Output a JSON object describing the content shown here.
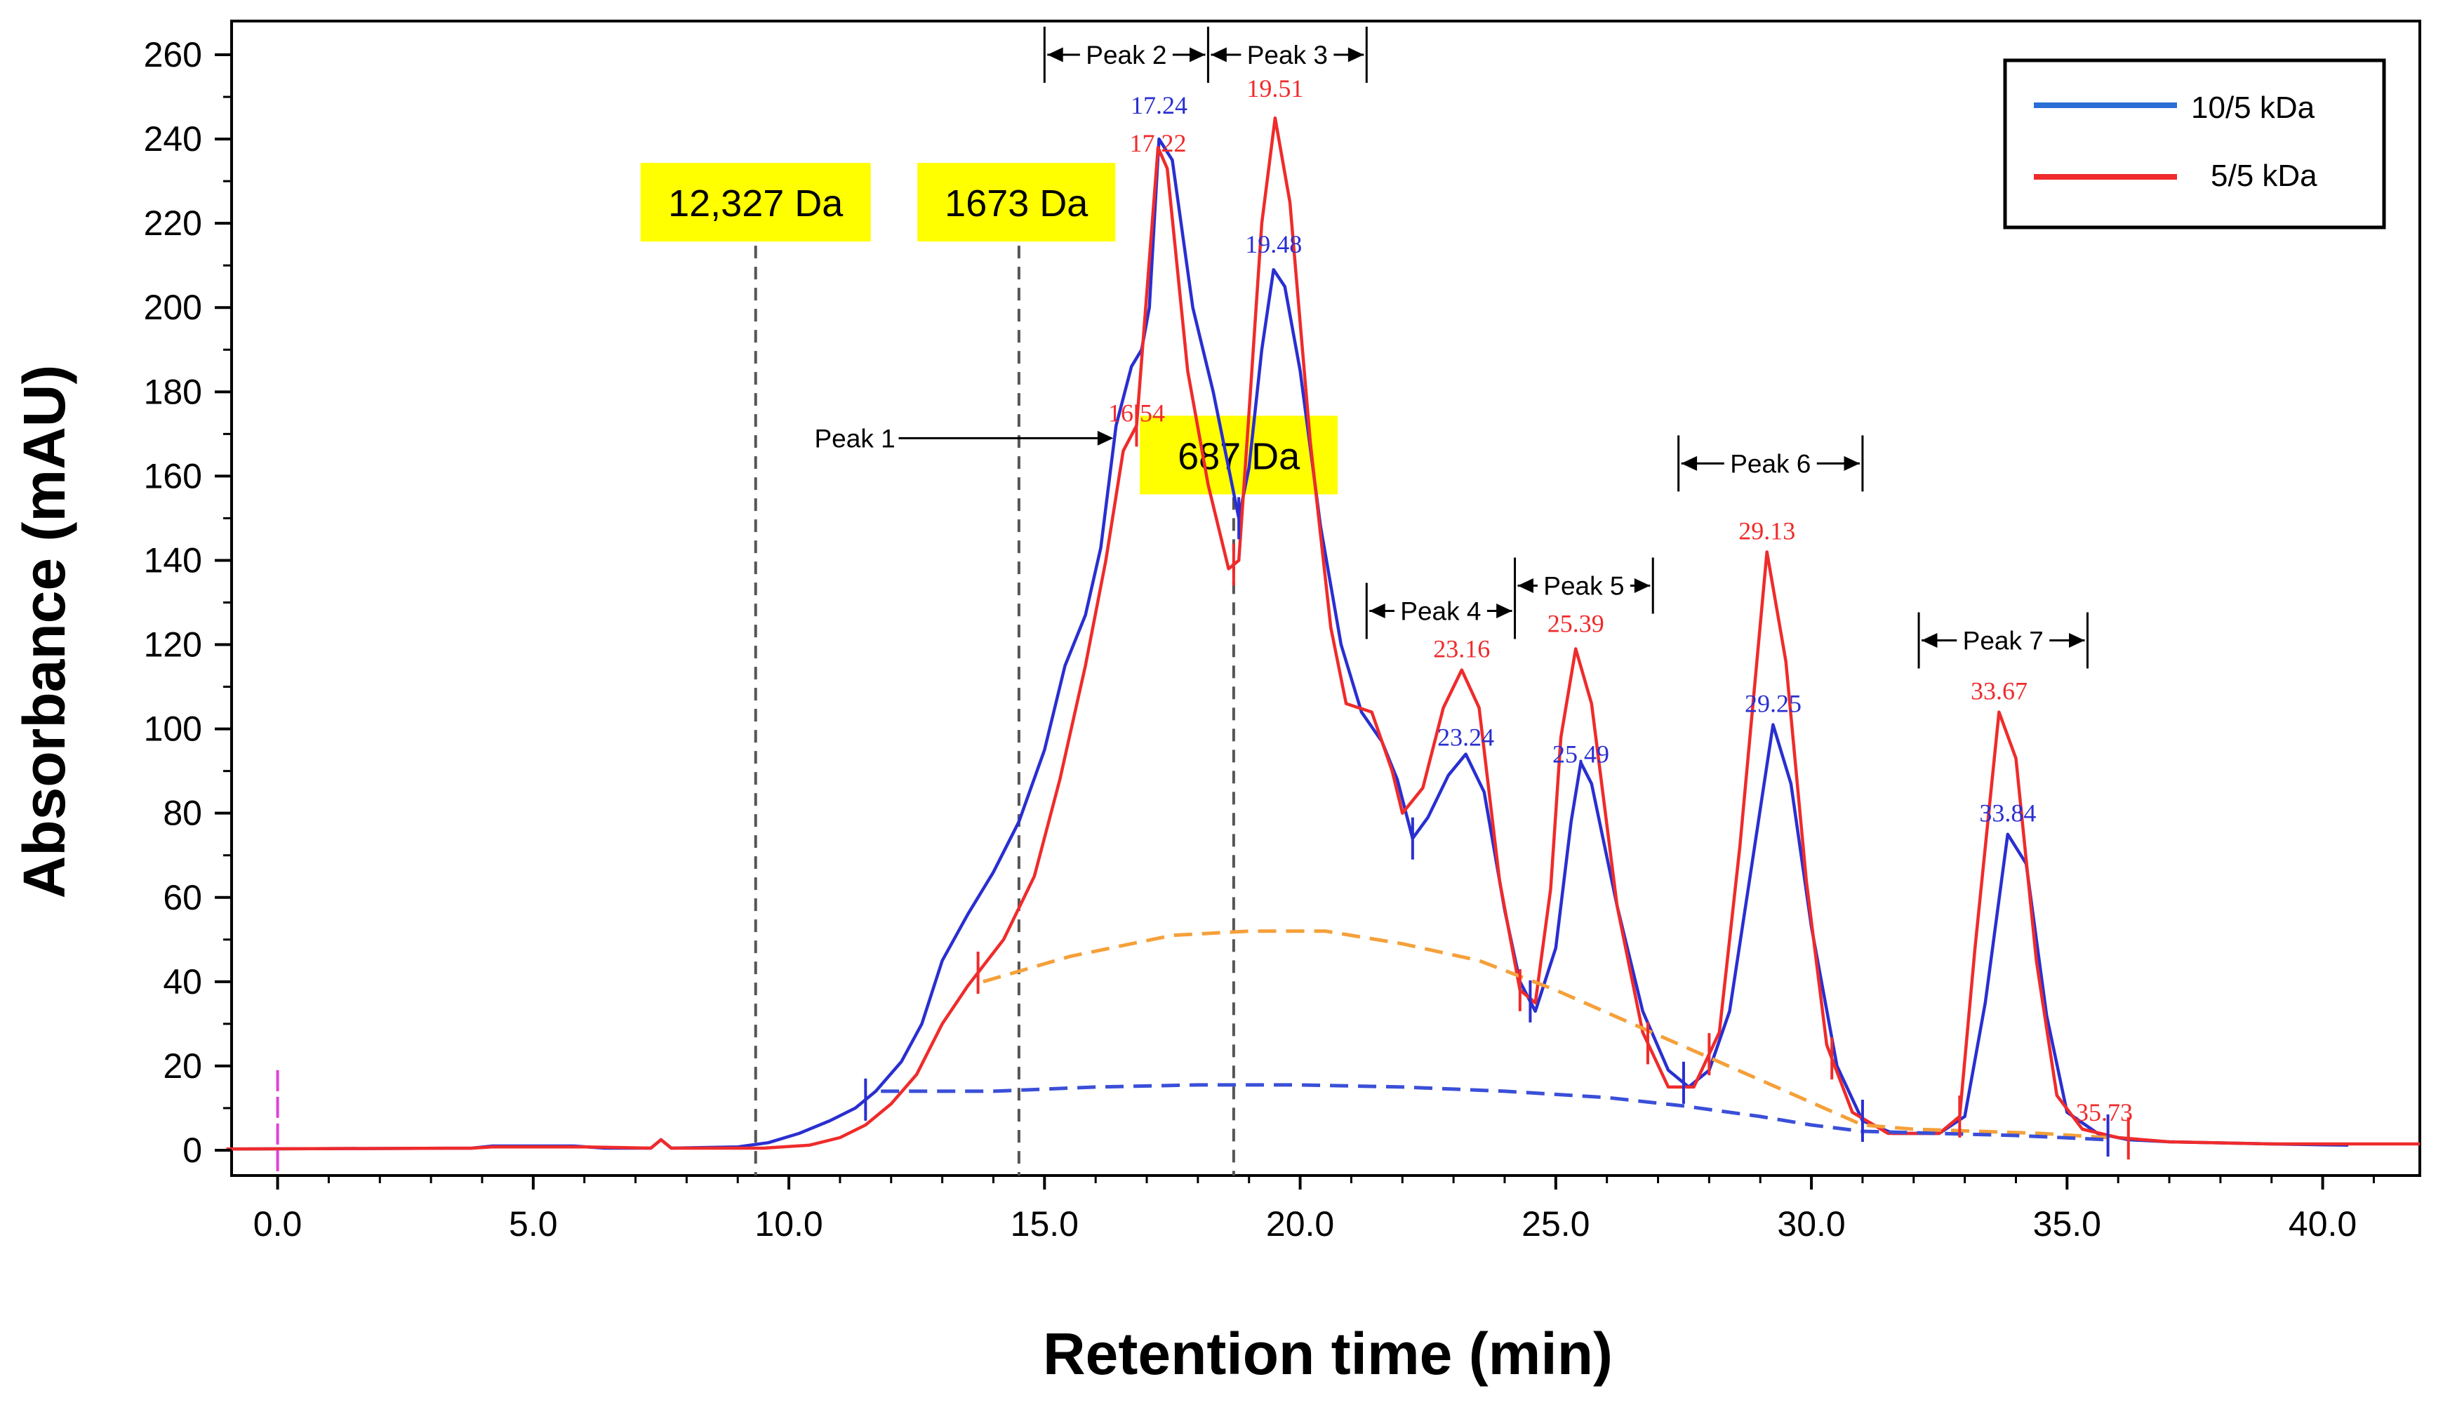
{
  "chart_data": {
    "type": "line",
    "xlabel": "Retention time (min)",
    "ylabel": "Absorbance (mAU)",
    "xlim": [
      -0.9,
      41.9
    ],
    "ylim": [
      -6,
      268
    ],
    "x_ticks": [
      0,
      5,
      10,
      15,
      20,
      25,
      30,
      35,
      40
    ],
    "x_tick_labels": [
      "0.0",
      "5.0",
      "10.0",
      "15.0",
      "20.0",
      "25.0",
      "30.0",
      "35.0",
      "40.0"
    ],
    "y_ticks": [
      0,
      20,
      40,
      60,
      80,
      100,
      120,
      140,
      160,
      180,
      200,
      220,
      240,
      260
    ],
    "y_tick_labels": [
      "0",
      "20",
      "40",
      "60",
      "80",
      "100",
      "120",
      "140",
      "160",
      "180",
      "200",
      "220",
      "240",
      "260"
    ],
    "colors": {
      "blue": "#2a2fd0",
      "red": "#ef2b2b",
      "orange": "#f5a03a",
      "dash_blue": "#3a4fd8",
      "magenta": "#e040d8",
      "highlight": "#ffff00"
    },
    "legend": {
      "position": "top-right",
      "entries": [
        "10/5 kDa",
        "5/5 kDa"
      ]
    },
    "series": [
      {
        "name": "10/5 kDa",
        "color": "#2a2fd0",
        "points": [
          [
            -1,
            0.3
          ],
          [
            3.8,
            0.5
          ],
          [
            4.2,
            1
          ],
          [
            5.8,
            1
          ],
          [
            6.4,
            0.5
          ],
          [
            7.3,
            0.5
          ],
          [
            7.5,
            2.5
          ],
          [
            7.7,
            0.5
          ],
          [
            9,
            0.8
          ],
          [
            9.6,
            1.8
          ],
          [
            10.2,
            4
          ],
          [
            10.8,
            7
          ],
          [
            11.3,
            10
          ],
          [
            11.7,
            14
          ],
          [
            12.2,
            21
          ],
          [
            12.6,
            30
          ],
          [
            13,
            45
          ],
          [
            13.5,
            56
          ],
          [
            14,
            66
          ],
          [
            14.5,
            78
          ],
          [
            15,
            95
          ],
          [
            15.4,
            115
          ],
          [
            15.8,
            127
          ],
          [
            16.1,
            143
          ],
          [
            16.4,
            172
          ],
          [
            16.7,
            186
          ],
          [
            16.9,
            190
          ],
          [
            17.05,
            200
          ],
          [
            17.24,
            240
          ],
          [
            17.5,
            235
          ],
          [
            17.9,
            200
          ],
          [
            18.3,
            180
          ],
          [
            18.6,
            162
          ],
          [
            18.8,
            150
          ],
          [
            19.0,
            162
          ],
          [
            19.25,
            190
          ],
          [
            19.48,
            209
          ],
          [
            19.7,
            205
          ],
          [
            20.0,
            185
          ],
          [
            20.4,
            148
          ],
          [
            20.8,
            120
          ],
          [
            21.2,
            104
          ],
          [
            21.6,
            97
          ],
          [
            21.9,
            88
          ],
          [
            22.2,
            74
          ],
          [
            22.5,
            79
          ],
          [
            22.9,
            89
          ],
          [
            23.24,
            94
          ],
          [
            23.6,
            85
          ],
          [
            24.0,
            57
          ],
          [
            24.3,
            40
          ],
          [
            24.6,
            33
          ],
          [
            25.0,
            48
          ],
          [
            25.3,
            78
          ],
          [
            25.49,
            92
          ],
          [
            25.7,
            87
          ],
          [
            26.2,
            58
          ],
          [
            26.7,
            33
          ],
          [
            27.2,
            19
          ],
          [
            27.6,
            15
          ],
          [
            28.0,
            19
          ],
          [
            28.4,
            33
          ],
          [
            28.8,
            65
          ],
          [
            29.25,
            101
          ],
          [
            29.6,
            87
          ],
          [
            30.0,
            53
          ],
          [
            30.5,
            20
          ],
          [
            31.0,
            7
          ],
          [
            31.6,
            4
          ],
          [
            32.5,
            4
          ],
          [
            33.0,
            8
          ],
          [
            33.4,
            35
          ],
          [
            33.84,
            75
          ],
          [
            34.2,
            68
          ],
          [
            34.6,
            32
          ],
          [
            35.0,
            9
          ],
          [
            35.6,
            4
          ],
          [
            36.2,
            2.5
          ],
          [
            37,
            2
          ],
          [
            39,
            1.5
          ],
          [
            40.5,
            1.2
          ]
        ]
      },
      {
        "name": "5/5 kDa",
        "color": "#ef2b2b",
        "points": [
          [
            -1,
            0.3
          ],
          [
            3.8,
            0.5
          ],
          [
            4.2,
            0.8
          ],
          [
            6,
            0.8
          ],
          [
            7.3,
            0.5
          ],
          [
            7.5,
            2.5
          ],
          [
            7.7,
            0.5
          ],
          [
            9.5,
            0.5
          ],
          [
            10.4,
            1.2
          ],
          [
            11.0,
            3
          ],
          [
            11.5,
            6
          ],
          [
            12.0,
            11
          ],
          [
            12.5,
            18
          ],
          [
            13.0,
            30
          ],
          [
            13.5,
            39
          ],
          [
            14.2,
            50
          ],
          [
            14.8,
            65
          ],
          [
            15.3,
            88
          ],
          [
            15.8,
            115
          ],
          [
            16.2,
            140
          ],
          [
            16.54,
            166
          ],
          [
            16.8,
            172
          ],
          [
            17.22,
            238
          ],
          [
            17.4,
            233
          ],
          [
            17.8,
            185
          ],
          [
            18.2,
            158
          ],
          [
            18.6,
            138
          ],
          [
            18.8,
            140
          ],
          [
            19.0,
            175
          ],
          [
            19.25,
            220
          ],
          [
            19.51,
            245
          ],
          [
            19.8,
            225
          ],
          [
            20.2,
            168
          ],
          [
            20.6,
            124
          ],
          [
            20.9,
            106
          ],
          [
            21.4,
            104
          ],
          [
            21.8,
            90
          ],
          [
            22.0,
            80
          ],
          [
            22.4,
            86
          ],
          [
            22.8,
            105
          ],
          [
            23.16,
            114
          ],
          [
            23.5,
            105
          ],
          [
            23.9,
            64
          ],
          [
            24.3,
            38
          ],
          [
            24.6,
            35
          ],
          [
            24.9,
            62
          ],
          [
            25.1,
            98
          ],
          [
            25.39,
            119
          ],
          [
            25.7,
            106
          ],
          [
            26.2,
            58
          ],
          [
            26.7,
            28
          ],
          [
            27.2,
            15
          ],
          [
            27.7,
            15
          ],
          [
            28.2,
            28
          ],
          [
            28.6,
            72
          ],
          [
            29.13,
            142
          ],
          [
            29.5,
            116
          ],
          [
            29.9,
            64
          ],
          [
            30.3,
            25
          ],
          [
            30.8,
            9
          ],
          [
            31.5,
            4
          ],
          [
            32.5,
            4
          ],
          [
            32.9,
            8
          ],
          [
            33.2,
            48
          ],
          [
            33.67,
            104
          ],
          [
            34.0,
            93
          ],
          [
            34.4,
            45
          ],
          [
            34.8,
            13
          ],
          [
            35.3,
            5
          ],
          [
            36,
            3
          ],
          [
            37,
            2
          ],
          [
            39,
            1.5
          ],
          [
            41.9,
            1.5
          ]
        ]
      },
      {
        "name": "baseline-orange",
        "color": "#f5a03a",
        "dashed": true,
        "points": [
          [
            13.8,
            40
          ],
          [
            15.5,
            46
          ],
          [
            17.5,
            51
          ],
          [
            19.0,
            52
          ],
          [
            20.5,
            52
          ],
          [
            22.0,
            49
          ],
          [
            23.5,
            45
          ],
          [
            25.0,
            38
          ],
          [
            26.5,
            30
          ],
          [
            28.0,
            22
          ],
          [
            29.5,
            14
          ],
          [
            31.0,
            6
          ],
          [
            32.0,
            5
          ],
          [
            34.5,
            4
          ],
          [
            35.8,
            3
          ]
        ]
      },
      {
        "name": "baseline-blue",
        "color": "#3a4fd8",
        "dashed": true,
        "points": [
          [
            11.8,
            14
          ],
          [
            14.0,
            14
          ],
          [
            16.0,
            15
          ],
          [
            18.0,
            15.5
          ],
          [
            20.0,
            15.5
          ],
          [
            22.0,
            15
          ],
          [
            24.0,
            14
          ],
          [
            26.0,
            12.5
          ],
          [
            27.5,
            10.5
          ],
          [
            29.0,
            8
          ],
          [
            30.0,
            6
          ],
          [
            31.0,
            4.5
          ],
          [
            32.5,
            4
          ],
          [
            34.0,
            3.5
          ],
          [
            35.8,
            2.5
          ]
        ]
      }
    ],
    "peak_value_labels": [
      {
        "text": "17.24",
        "x": 17.24,
        "y": 246,
        "color": "#2a2fd0"
      },
      {
        "text": "17.22",
        "x": 17.22,
        "y": 237,
        "color": "#ef2b2b"
      },
      {
        "text": "19.51",
        "x": 19.51,
        "y": 250,
        "color": "#ef2b2b"
      },
      {
        "text": "19.48",
        "x": 19.48,
        "y": 213,
        "color": "#2a2fd0"
      },
      {
        "text": "16.54",
        "x": 16.8,
        "y": 173,
        "color": "#ef2b2b"
      },
      {
        "text": "23.16",
        "x": 23.16,
        "y": 117,
        "color": "#ef2b2b"
      },
      {
        "text": "23.24",
        "x": 23.24,
        "y": 96,
        "color": "#2a2fd0"
      },
      {
        "text": "25.39",
        "x": 25.39,
        "y": 123,
        "color": "#ef2b2b"
      },
      {
        "text": "25.49",
        "x": 25.49,
        "y": 92,
        "color": "#2a2fd0"
      },
      {
        "text": "29.13",
        "x": 29.13,
        "y": 145,
        "color": "#ef2b2b"
      },
      {
        "text": "29.25",
        "x": 29.25,
        "y": 104,
        "color": "#2a2fd0"
      },
      {
        "text": "33.67",
        "x": 33.67,
        "y": 107,
        "color": "#ef2b2b"
      },
      {
        "text": "33.84",
        "x": 33.84,
        "y": 78,
        "color": "#2a2fd0"
      },
      {
        "text": "35.73",
        "x": 35.73,
        "y": 7,
        "color": "#ef2b2b"
      }
    ],
    "peak_regions": [
      {
        "label": "Peak 2",
        "x_start": 15.0,
        "x_end": 18.2,
        "y": 260
      },
      {
        "label": "Peak 3",
        "x_start": 18.2,
        "x_end": 21.3,
        "y": 260
      },
      {
        "label": "Peak 4",
        "x_start": 21.3,
        "x_end": 24.2,
        "y": 128
      },
      {
        "label": "Peak 5",
        "x_start": 24.2,
        "x_end": 26.9,
        "y": 134
      },
      {
        "label": "Peak 6",
        "x_start": 27.4,
        "x_end": 31.0,
        "y": 163
      },
      {
        "label": "Peak 7",
        "x_start": 32.1,
        "x_end": 35.4,
        "y": 121
      }
    ],
    "peak1_annotation": {
      "label": "Peak 1",
      "x_text": 10.5,
      "x_arrow_end": 16.4,
      "y": 169
    },
    "mw_markers": [
      {
        "label": "12,327 Da",
        "x": 9.35,
        "box_x": 9.35,
        "box_y": 225
      },
      {
        "label": "1673 Da",
        "x": 14.5,
        "box_x": 14.45,
        "box_y": 225
      },
      {
        "label": "687 Da",
        "x": 18.7,
        "box_x": 18.8,
        "box_y": 165
      }
    ],
    "integration_marks": {
      "blue": [
        11.5,
        18.8,
        22.2,
        24.5,
        27.5,
        31.0,
        35.8
      ],
      "red": [
        13.7,
        16.8,
        18.7,
        24.3,
        26.8,
        28.0,
        30.4,
        32.9,
        36.2
      ]
    },
    "injection_marker_x": 0
  }
}
